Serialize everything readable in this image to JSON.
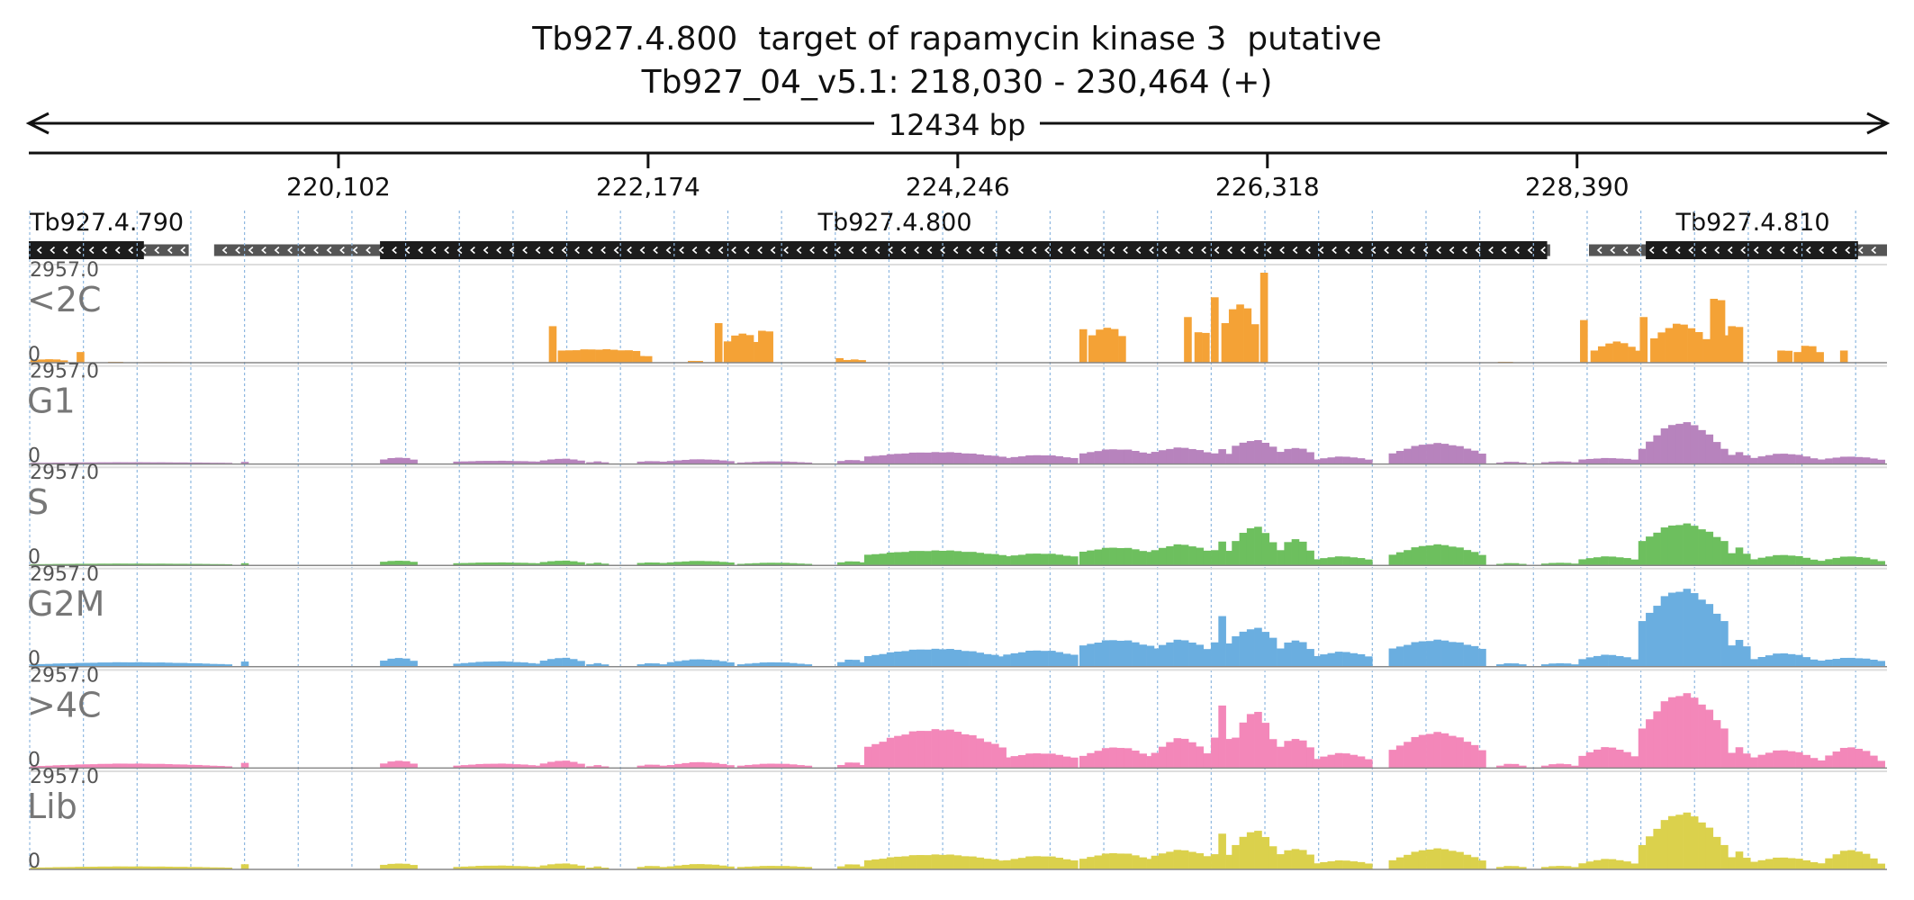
{
  "header": {
    "title": "Tb927.4.800  target of rapamycin kinase 3  putative",
    "location": "Tb927_04_v5.1: 218,030 - 230,464 (+)",
    "span_label": "12434 bp"
  },
  "chart_data": {
    "type": "area",
    "region": {
      "start": 218030,
      "end": 230464,
      "strand": "+"
    },
    "ruler_ticks": [
      "220,102",
      "222,174",
      "224,246",
      "226,318",
      "228,390"
    ],
    "ruler_tick_positions": [
      220102,
      222174,
      224246,
      226318,
      228390
    ],
    "genes": [
      {
        "name": "Tb927.4.790",
        "start": 218030,
        "end": 219100,
        "cds_start": 218030,
        "cds_end": 218800,
        "strand": "-"
      },
      {
        "name": "Tb927.4.800",
        "start": 219270,
        "end": 228210,
        "cds_start": 220380,
        "cds_end": 228190,
        "strand": "-"
      },
      {
        "name": "Tb927.4.810",
        "start": 228470,
        "end": 230464,
        "cds_start": 228850,
        "cds_end": 230270,
        "strand": "-"
      }
    ],
    "ylim": [
      0,
      2957.0
    ],
    "y_top_label": "2957.0",
    "y_bottom_label": "0",
    "bin_size_bp": 50,
    "tracks": [
      {
        "name": "<2C",
        "color": "#f4a236",
        "segments": [
          [
            218040,
            218300,
            80,
            120
          ],
          [
            218350,
            218400,
            350,
            350
          ],
          [
            218560,
            218640,
            30,
            30
          ],
          [
            218700,
            219150,
            15,
            20
          ],
          [
            221510,
            221570,
            1200,
            1200
          ],
          [
            221570,
            222100,
            400,
            450
          ],
          [
            222100,
            222200,
            200,
            220
          ],
          [
            222440,
            222520,
            60,
            60
          ],
          [
            222620,
            222680,
            1300,
            1300
          ],
          [
            222680,
            222910,
            700,
            1000
          ],
          [
            222910,
            223000,
            1050,
            1050
          ],
          [
            223430,
            223480,
            150,
            150
          ],
          [
            223480,
            223620,
            90,
            110
          ],
          [
            225060,
            225120,
            1100,
            1100
          ],
          [
            225120,
            225350,
            900,
            1200
          ],
          [
            225760,
            225830,
            1500,
            1500
          ],
          [
            225830,
            225930,
            800,
            1000
          ],
          [
            225940,
            226010,
            2150,
            2150
          ],
          [
            226010,
            226260,
            1300,
            2000
          ],
          [
            226270,
            226330,
            2957,
            2957
          ],
          [
            227860,
            227960,
            30,
            30
          ],
          [
            228410,
            228480,
            1400,
            1400
          ],
          [
            228480,
            228810,
            400,
            700
          ],
          [
            228810,
            228880,
            1500,
            1500
          ],
          [
            228880,
            229280,
            800,
            1300
          ],
          [
            229280,
            229360,
            2100,
            2100
          ],
          [
            229360,
            229400,
            900,
            900
          ],
          [
            229400,
            229480,
            1200,
            1200
          ],
          [
            229730,
            229810,
            400,
            400
          ],
          [
            229840,
            230060,
            350,
            600
          ],
          [
            230150,
            230210,
            400,
            400
          ]
        ]
      },
      {
        "name": "G1",
        "color": "#b783bd",
        "segments": [
          [
            218040,
            219400,
            40,
            60
          ],
          [
            219450,
            219520,
            70,
            70
          ],
          [
            220380,
            220640,
            150,
            220
          ],
          [
            220870,
            221450,
            80,
            110
          ],
          [
            221450,
            221760,
            120,
            180
          ],
          [
            221760,
            221900,
            60,
            90
          ],
          [
            222100,
            222300,
            80,
            100
          ],
          [
            222300,
            222770,
            100,
            160
          ],
          [
            222770,
            223260,
            50,
            90
          ],
          [
            223440,
            223620,
            100,
            140
          ],
          [
            223620,
            224550,
            250,
            400
          ],
          [
            224550,
            225060,
            200,
            300
          ],
          [
            225060,
            225540,
            350,
            500
          ],
          [
            225540,
            225940,
            400,
            550
          ],
          [
            225940,
            226080,
            350,
            500
          ],
          [
            226080,
            226380,
            600,
            800
          ],
          [
            226380,
            226620,
            400,
            550
          ],
          [
            226620,
            227000,
            150,
            250
          ],
          [
            227130,
            227800,
            350,
            700
          ],
          [
            227850,
            228050,
            50,
            80
          ],
          [
            228150,
            228380,
            60,
            90
          ],
          [
            228400,
            228800,
            150,
            200
          ],
          [
            228800,
            229400,
            500,
            1400
          ],
          [
            229400,
            229550,
            300,
            400
          ],
          [
            229550,
            230000,
            200,
            350
          ],
          [
            230000,
            230464,
            150,
            250
          ]
        ]
      },
      {
        "name": "S",
        "color": "#6dbf5e",
        "segments": [
          [
            218040,
            219400,
            40,
            60
          ],
          [
            219450,
            219520,
            70,
            70
          ],
          [
            220380,
            220640,
            120,
            160
          ],
          [
            220870,
            221450,
            70,
            100
          ],
          [
            221450,
            221760,
            110,
            160
          ],
          [
            221760,
            221900,
            60,
            90
          ],
          [
            222100,
            222300,
            80,
            100
          ],
          [
            222300,
            222770,
            100,
            150
          ],
          [
            222770,
            223260,
            50,
            90
          ],
          [
            223440,
            223620,
            100,
            140
          ],
          [
            223620,
            224550,
            350,
            500
          ],
          [
            224550,
            225060,
            300,
            400
          ],
          [
            225060,
            225540,
            450,
            600
          ],
          [
            225540,
            225940,
            500,
            700
          ],
          [
            225940,
            226080,
            500,
            800
          ],
          [
            226080,
            226380,
            800,
            1300
          ],
          [
            226380,
            226620,
            500,
            900
          ],
          [
            226620,
            227000,
            200,
            300
          ],
          [
            227130,
            227800,
            350,
            700
          ],
          [
            227850,
            228050,
            50,
            80
          ],
          [
            228150,
            228380,
            60,
            90
          ],
          [
            228400,
            228800,
            200,
            300
          ],
          [
            228800,
            229400,
            800,
            1400
          ],
          [
            229400,
            229550,
            400,
            600
          ],
          [
            229550,
            230000,
            200,
            350
          ],
          [
            230000,
            230464,
            150,
            300
          ]
        ]
      },
      {
        "name": "G2M",
        "color": "#6aaee0",
        "segments": [
          [
            218040,
            219400,
            80,
            150
          ],
          [
            219450,
            219520,
            170,
            170
          ],
          [
            220380,
            220640,
            200,
            300
          ],
          [
            220870,
            221450,
            100,
            180
          ],
          [
            221450,
            221760,
            200,
            300
          ],
          [
            221760,
            221900,
            80,
            120
          ],
          [
            222100,
            222300,
            80,
            120
          ],
          [
            222300,
            222770,
            150,
            250
          ],
          [
            222770,
            223260,
            80,
            150
          ],
          [
            223440,
            223620,
            150,
            250
          ],
          [
            223620,
            224550,
            350,
            600
          ],
          [
            224550,
            225060,
            400,
            550
          ],
          [
            225060,
            225540,
            700,
            900
          ],
          [
            225540,
            225940,
            600,
            900
          ],
          [
            225940,
            226080,
            800,
            1700
          ],
          [
            226080,
            226380,
            1000,
            1300
          ],
          [
            226380,
            226620,
            600,
            900
          ],
          [
            226620,
            227000,
            350,
            500
          ],
          [
            227130,
            227800,
            600,
            900
          ],
          [
            227850,
            228050,
            80,
            120
          ],
          [
            228150,
            228380,
            80,
            120
          ],
          [
            228400,
            228800,
            250,
            400
          ],
          [
            228800,
            229400,
            1500,
            2600
          ],
          [
            229400,
            229550,
            700,
            900
          ],
          [
            229550,
            230000,
            250,
            450
          ],
          [
            230000,
            230464,
            200,
            300
          ]
        ]
      },
      {
        "name": ">4C",
        "color": "#f387b9",
        "segments": [
          [
            218040,
            219400,
            60,
            150
          ],
          [
            219450,
            219520,
            170,
            170
          ],
          [
            220380,
            220640,
            150,
            250
          ],
          [
            220870,
            221450,
            80,
            150
          ],
          [
            221450,
            221760,
            150,
            250
          ],
          [
            221760,
            221900,
            60,
            100
          ],
          [
            222100,
            222300,
            80,
            120
          ],
          [
            222300,
            222770,
            100,
            200
          ],
          [
            222770,
            223260,
            80,
            150
          ],
          [
            223440,
            223620,
            100,
            200
          ],
          [
            223620,
            224550,
            700,
            1300
          ],
          [
            224550,
            225060,
            350,
            500
          ],
          [
            225060,
            225540,
            400,
            700
          ],
          [
            225540,
            225940,
            500,
            1000
          ],
          [
            225940,
            226080,
            1000,
            2100
          ],
          [
            226080,
            226380,
            1000,
            1900
          ],
          [
            226380,
            226620,
            700,
            1000
          ],
          [
            226620,
            227000,
            300,
            500
          ],
          [
            227130,
            227800,
            600,
            1200
          ],
          [
            227850,
            228050,
            80,
            150
          ],
          [
            228150,
            228380,
            80,
            150
          ],
          [
            228400,
            228800,
            400,
            700
          ],
          [
            228800,
            229400,
            1300,
            2500
          ],
          [
            229400,
            229550,
            500,
            700
          ],
          [
            229550,
            230000,
            350,
            600
          ],
          [
            230000,
            230464,
            250,
            700
          ]
        ]
      },
      {
        "name": "Lib",
        "color": "#dbd14c",
        "segments": [
          [
            218040,
            219400,
            60,
            100
          ],
          [
            219450,
            219520,
            170,
            170
          ],
          [
            220380,
            220640,
            150,
            200
          ],
          [
            220870,
            221450,
            80,
            130
          ],
          [
            221450,
            221760,
            130,
            200
          ],
          [
            221760,
            221900,
            60,
            100
          ],
          [
            222100,
            222300,
            80,
            120
          ],
          [
            222300,
            222770,
            100,
            180
          ],
          [
            222770,
            223260,
            80,
            120
          ],
          [
            223440,
            223620,
            100,
            180
          ],
          [
            223620,
            224550,
            300,
            500
          ],
          [
            224550,
            225060,
            300,
            450
          ],
          [
            225060,
            225540,
            350,
            550
          ],
          [
            225540,
            225940,
            450,
            650
          ],
          [
            225940,
            226080,
            500,
            1200
          ],
          [
            226080,
            226380,
            800,
            1300
          ],
          [
            226380,
            226620,
            500,
            700
          ],
          [
            226620,
            227000,
            200,
            300
          ],
          [
            227130,
            227800,
            300,
            700
          ],
          [
            227850,
            228050,
            80,
            120
          ],
          [
            228150,
            228380,
            80,
            120
          ],
          [
            228400,
            228800,
            200,
            350
          ],
          [
            228800,
            229400,
            800,
            1900
          ],
          [
            229400,
            229550,
            400,
            600
          ],
          [
            229550,
            230000,
            250,
            400
          ],
          [
            230000,
            230464,
            200,
            650
          ]
        ]
      }
    ],
    "grid": true,
    "legend": "none"
  }
}
